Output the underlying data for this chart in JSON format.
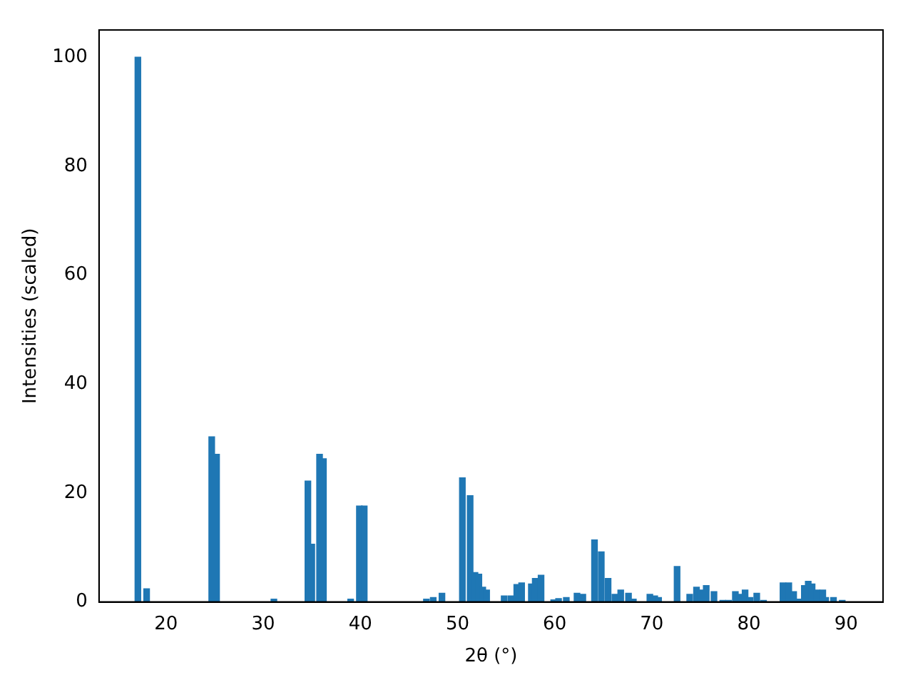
{
  "chart_data": {
    "type": "bar",
    "xlabel": "2θ (°)",
    "ylabel": "Intensities (scaled)",
    "color": "#1f77b4",
    "x": [
      17.1,
      18.0,
      24.7,
      25.2,
      31.1,
      34.6,
      35.0,
      35.8,
      36.2,
      39.0,
      39.9,
      40.4,
      46.8,
      47.5,
      48.4,
      50.5,
      51.3,
      51.8,
      52.2,
      52.6,
      53.0,
      54.8,
      55.5,
      56.1,
      56.6,
      57.6,
      58.0,
      58.6,
      59.9,
      60.4,
      61.2,
      62.3,
      62.9,
      64.1,
      64.8,
      65.5,
      66.2,
      66.8,
      67.6,
      68.1,
      69.8,
      70.3,
      70.7,
      72.6,
      73.9,
      74.6,
      75.0,
      75.6,
      76.4,
      77.3,
      77.9,
      78.6,
      79.1,
      79.6,
      80.1,
      80.8,
      81.5,
      83.5,
      84.1,
      84.6,
      85.2,
      85.7,
      86.1,
      86.5,
      87.0,
      87.6,
      87.9,
      88.7,
      89.6
    ],
    "values": [
      100,
      2.4,
      30.3,
      27.1,
      0.5,
      22.2,
      10.6,
      27.1,
      26.3,
      0.5,
      17.6,
      17.6,
      0.5,
      0.8,
      1.6,
      22.8,
      19.5,
      5.4,
      5.1,
      2.7,
      2.2,
      1.1,
      1.1,
      3.2,
      3.5,
      3.3,
      4.3,
      4.9,
      0.4,
      0.6,
      0.8,
      1.6,
      1.4,
      11.4,
      9.2,
      4.3,
      1.4,
      2.2,
      1.6,
      0.5,
      1.4,
      1.1,
      0.8,
      6.5,
      1.4,
      2.7,
      2.2,
      3.0,
      1.9,
      0.3,
      0.3,
      1.9,
      1.4,
      2.2,
      0.8,
      1.6,
      0.3,
      3.5,
      3.5,
      1.9,
      0.5,
      3.0,
      3.8,
      3.3,
      2.2,
      2.2,
      0.8,
      0.8,
      0.3
    ],
    "xlim": [
      13.1,
      93.8
    ],
    "xticks": [
      20,
      30,
      40,
      50,
      60,
      70,
      80,
      90
    ],
    "ylim": [
      0,
      105
    ],
    "yticks": [
      0,
      20,
      40,
      60,
      80,
      100
    ],
    "grid": false,
    "legend": false
  }
}
